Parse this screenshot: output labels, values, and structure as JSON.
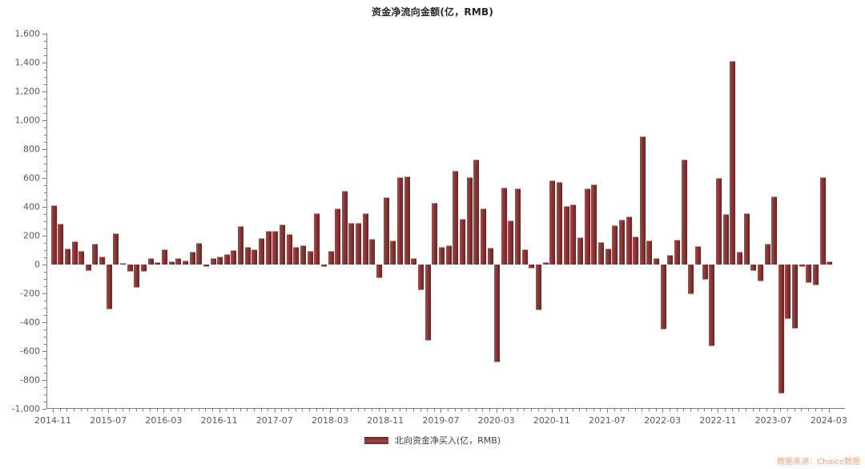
{
  "title": "资金净流向金额(亿，RMB)",
  "legend": {
    "label": "北向资金净买入(亿，RMB)",
    "swatch_color": "#8c3434"
  },
  "source_note": "数据来源：Choice数据",
  "colors": {
    "bar": "#8c3434",
    "bar_highlight": "#a54e4e",
    "bar_shadow": "#6e2222",
    "axis": "#7f7f7f",
    "axis_label": "#595959",
    "title": "#262626",
    "source": "#f2a185"
  },
  "chart_data": {
    "type": "bar",
    "title": "资金净流向金额(亿，RMB)",
    "series_name": "北向资金净买入(亿，RMB)",
    "x_start": "2014-11",
    "x_end": "2024-03",
    "x_freq": "monthly",
    "xtick_labels": [
      "2014-11",
      "2015-07",
      "2016-03",
      "2016-11",
      "2017-07",
      "2018-03",
      "2018-11",
      "2019-07",
      "2020-03",
      "2020-11",
      "2021-07",
      "2022-03",
      "2022-11",
      "2023-07",
      "2024-03"
    ],
    "xtick_every": 8,
    "ylim": [
      -1000,
      1600
    ],
    "ytick_major": 200,
    "ytick_minor": 50,
    "grid": false,
    "legend_position": "bottom",
    "values": [
      410,
      285,
      112,
      159,
      97,
      -43,
      144,
      56,
      -310,
      215,
      13,
      -49,
      -159,
      -48,
      44,
      17,
      105,
      22,
      44,
      30,
      90,
      153,
      -15,
      46,
      56,
      74,
      102,
      265,
      120,
      107,
      181,
      231,
      235,
      278,
      213,
      124,
      135,
      93,
      355,
      -15,
      96,
      389,
      509,
      291,
      291,
      356,
      176,
      -93,
      467,
      167,
      607,
      611,
      45,
      -175,
      -530,
      430,
      120,
      131,
      650,
      315,
      605,
      730,
      390,
      118,
      -675,
      531,
      306,
      528,
      107,
      -25,
      -318,
      19,
      583,
      574,
      404,
      415,
      189,
      528,
      556,
      157,
      112,
      270,
      309,
      332,
      192,
      890,
      168,
      42,
      -450,
      65,
      172,
      730,
      -205,
      130,
      -108,
      -565,
      600,
      350,
      1413,
      90,
      355,
      -46,
      -118,
      142,
      470,
      -895,
      -375,
      -445,
      -18,
      -128,
      -145,
      605,
      25
    ]
  }
}
